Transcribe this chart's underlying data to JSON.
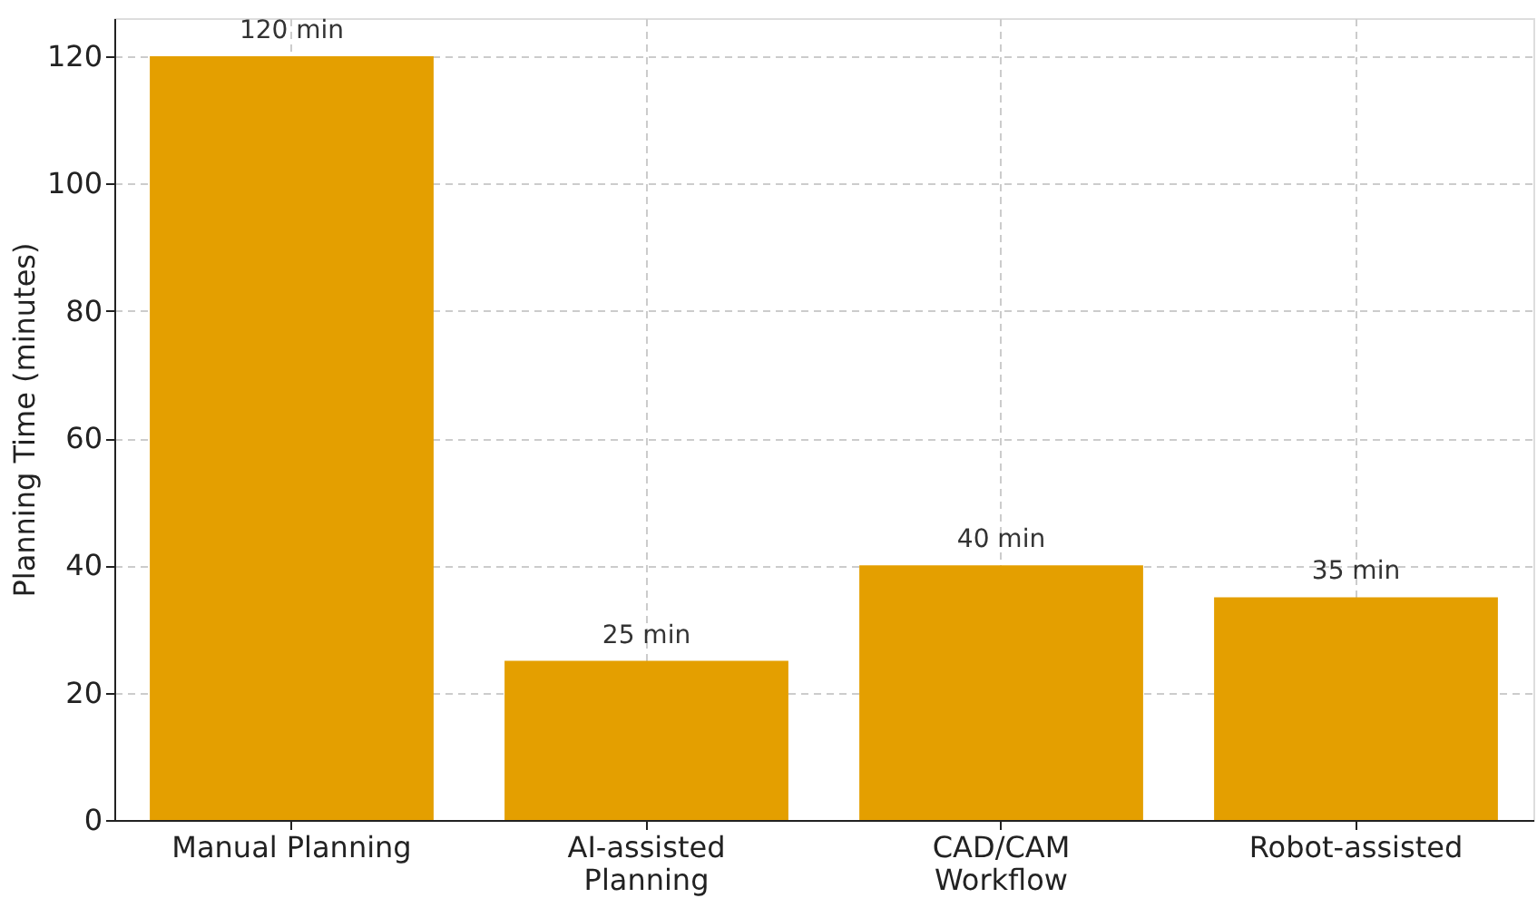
{
  "chart_data": {
    "type": "bar",
    "ylabel": "Planning Time (minutes)",
    "categories": [
      "Manual Planning",
      "AI-assisted\nPlanning",
      "CAD/CAM\nWorkflow",
      "Robot-assisted"
    ],
    "values": [
      120,
      25,
      40,
      35
    ],
    "value_labels": [
      "120 min",
      "25 min",
      "40 min",
      "35 min"
    ],
    "color": "#e49f00",
    "ylim": [
      0,
      126
    ],
    "yticks": [
      0,
      20,
      40,
      60,
      80,
      100,
      120
    ],
    "grid": true
  }
}
